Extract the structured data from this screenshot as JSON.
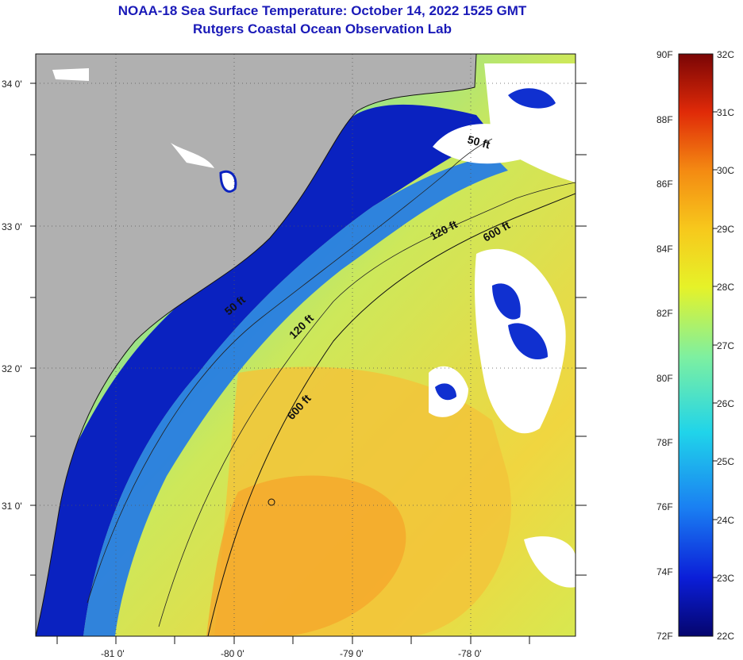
{
  "title": {
    "line1": "NOAA-18 Sea Surface Temperature:  October 14, 2022 1525 GMT",
    "line2": "Rutgers Coastal Ocean Observation Lab"
  },
  "map": {
    "lat_labels": [
      "34 0'",
      "33 0'",
      "32 0'",
      "31 0'"
    ],
    "lon_labels": [
      "-81 0'",
      "-80 0'",
      "-79 0'",
      "-78 0'"
    ],
    "colors": {
      "land": "#b0b0b0",
      "cloud": "#ffffff",
      "shelf": "#0a1fb0",
      "warm": "#f2b52a"
    },
    "contours": {
      "c50a": "50 ft",
      "c50b": "50 ft",
      "c120a": "120 ft",
      "c120b": "120 ft",
      "c600a": "600 ft",
      "c600b": "600 ft"
    }
  },
  "colorbar": {
    "fahrenheit": [
      "90F",
      "88F",
      "86F",
      "84F",
      "82F",
      "80F",
      "78F",
      "76F",
      "74F",
      "72F"
    ],
    "celsius": [
      "32C",
      "31C",
      "30C",
      "29C",
      "28C",
      "27C",
      "26C",
      "25C",
      "24C",
      "23C",
      "22C"
    ]
  }
}
